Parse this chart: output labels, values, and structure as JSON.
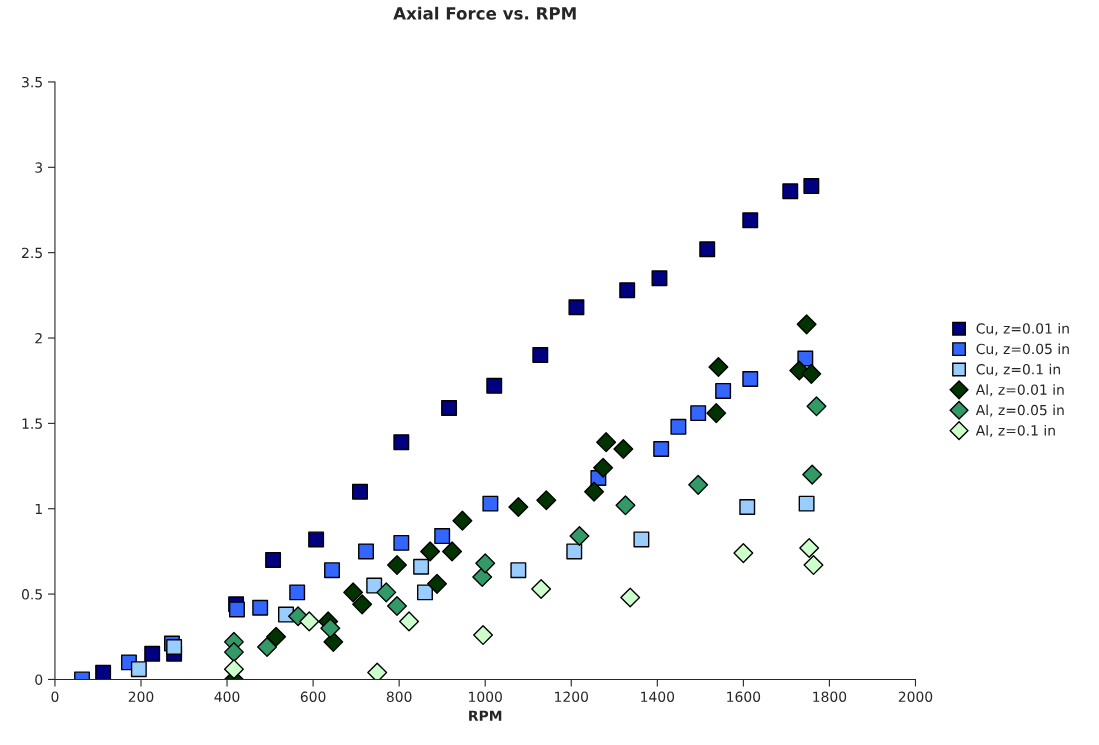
{
  "chart_data": {
    "type": "scatter",
    "title": "Axial Force vs. RPM",
    "xlabel": "RPM",
    "xlim": [
      0,
      2000
    ],
    "xticks": [
      0,
      200,
      400,
      600,
      800,
      1000,
      1200,
      1400,
      1600,
      1800,
      2000
    ],
    "ylim": [
      0,
      3.5
    ],
    "yticks": [
      0,
      0.5,
      1,
      1.5,
      2,
      2.5,
      3,
      3.5
    ],
    "grid": false,
    "legend": "right",
    "series": [
      {
        "name": "Cu, z=0.01 in",
        "color": "#000080",
        "marker": "square",
        "x": [
          112,
          226,
          277,
          421,
          507,
          607,
          709,
          805,
          916,
          1021,
          1128,
          1212,
          1330,
          1405,
          1516,
          1616,
          1709,
          1758
        ],
        "values": [
          0.04,
          0.15,
          0.15,
          0.44,
          0.7,
          0.82,
          1.1,
          1.39,
          1.59,
          1.72,
          1.9,
          2.18,
          2.28,
          2.35,
          2.52,
          2.69,
          2.86,
          2.89
        ]
      },
      {
        "name": "Cu, z=0.05 in",
        "color": "#3366ff",
        "marker": "square",
        "x": [
          63,
          172,
          272,
          423,
          477,
          563,
          644,
          723,
          805,
          900,
          1012,
          1263,
          1409,
          1449,
          1495,
          1553,
          1616,
          1744
        ],
        "values": [
          0.0,
          0.1,
          0.21,
          0.41,
          0.42,
          0.51,
          0.64,
          0.75,
          0.8,
          0.84,
          1.03,
          1.18,
          1.35,
          1.48,
          1.56,
          1.69,
          1.76,
          1.88
        ]
      },
      {
        "name": "Cu, z=0.1 in",
        "color": "#99ccff",
        "marker": "square",
        "x": [
          195,
          277,
          537,
          742,
          851,
          860,
          1077,
          1207,
          1363,
          1609,
          1747
        ],
        "values": [
          0.06,
          0.19,
          0.38,
          0.55,
          0.66,
          0.51,
          0.64,
          0.75,
          0.82,
          1.01,
          1.03
        ]
      },
      {
        "name": "Al, z=0.01 in",
        "color": "#003300",
        "marker": "diamond",
        "x": [
          416,
          514,
          635,
          647,
          693,
          714,
          795,
          872,
          888,
          923,
          947,
          1077,
          1142,
          1253,
          1274,
          1281,
          1321,
          1537,
          1542,
          1730,
          1747,
          1758
        ],
        "values": [
          0.0,
          0.25,
          0.34,
          0.22,
          0.51,
          0.44,
          0.67,
          0.75,
          0.56,
          0.75,
          0.93,
          1.01,
          1.05,
          1.1,
          1.24,
          1.39,
          1.35,
          1.56,
          1.83,
          1.81,
          2.08,
          1.79
        ]
      },
      {
        "name": "Al, z=0.05 in",
        "color": "#339966",
        "marker": "diamond",
        "x": [
          416,
          416,
          493,
          565,
          640,
          770,
          795,
          993,
          1000,
          1219,
          1326,
          1495,
          1760,
          1770
        ],
        "values": [
          0.22,
          0.16,
          0.19,
          0.37,
          0.3,
          0.51,
          0.43,
          0.6,
          0.68,
          0.84,
          1.02,
          1.14,
          1.2,
          1.6
        ]
      },
      {
        "name": "Al, z=0.1 in",
        "color": "#ccffcc",
        "marker": "diamond",
        "x": [
          416,
          591,
          749,
          823,
          995,
          1130,
          1337,
          1600,
          1753,
          1763
        ],
        "values": [
          0.06,
          0.34,
          0.04,
          0.34,
          0.26,
          0.53,
          0.48,
          0.74,
          0.77,
          0.67
        ]
      }
    ]
  }
}
